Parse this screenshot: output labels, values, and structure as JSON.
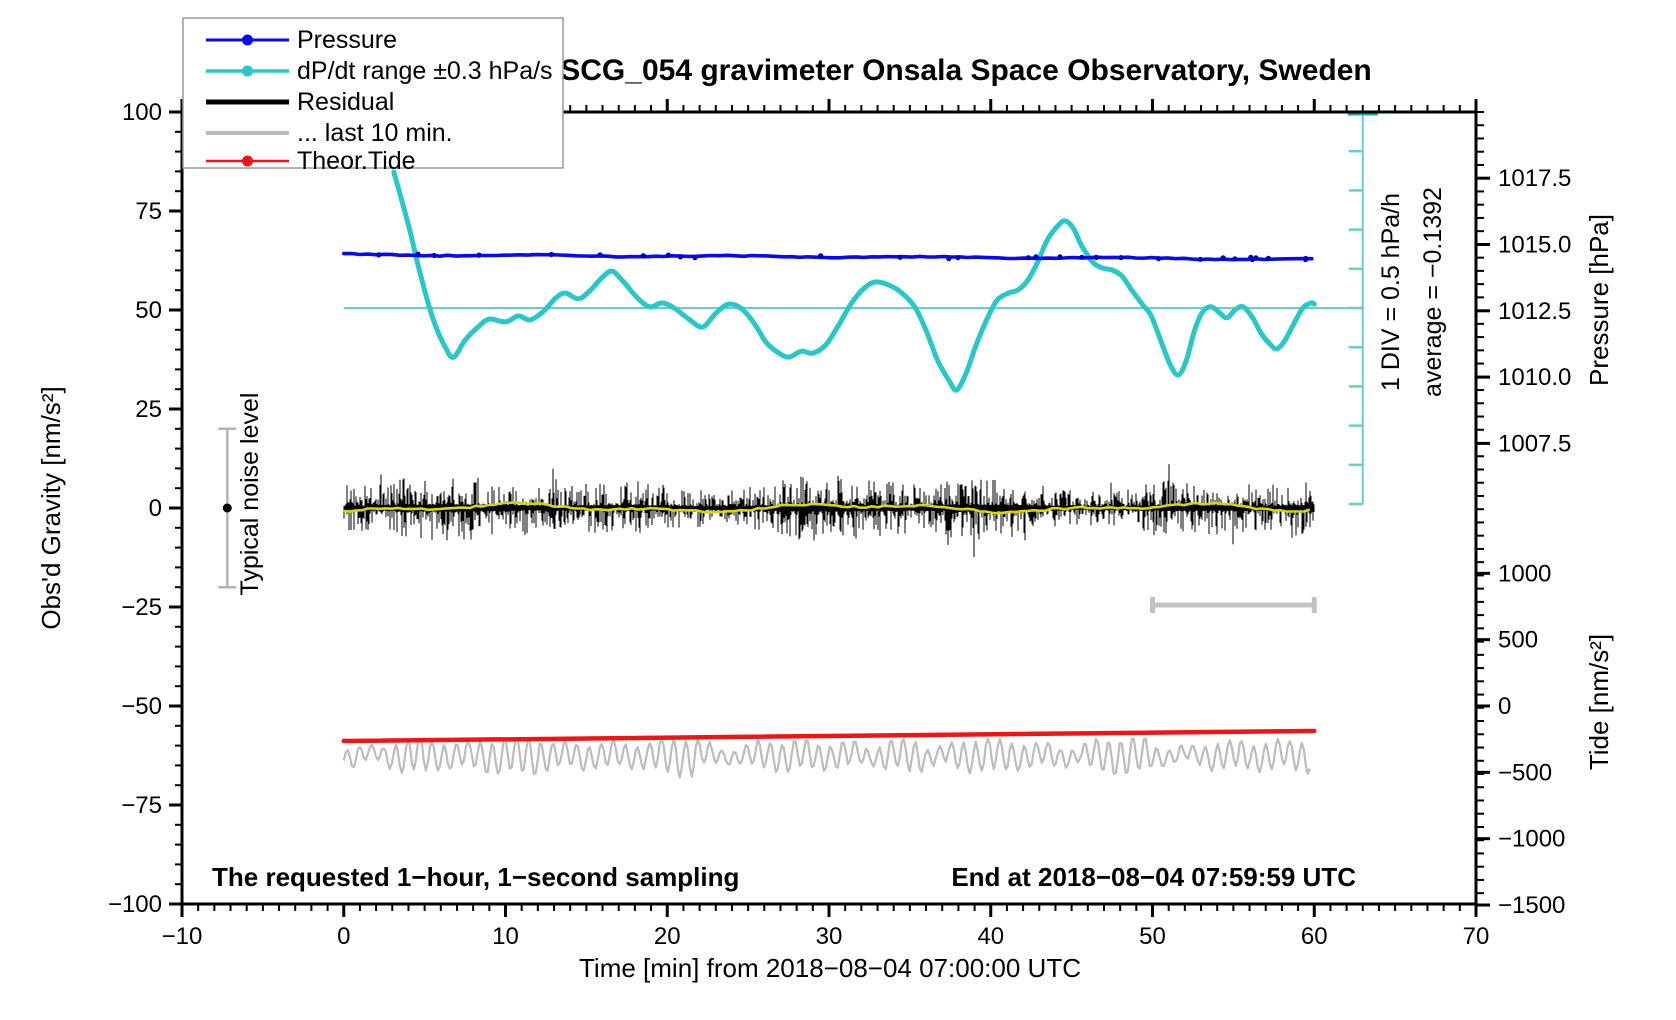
{
  "title": "SCG_054 gravimeter Onsala Space Observatory, Sweden",
  "annotations": {
    "bottom_left": "The requested 1−hour, 1−second sampling",
    "bottom_right": "End at 2018−08−04 07:59:59 UTC",
    "div_scale": "1 DIV = 0.5 hPa/h",
    "average": "average = −0.1392",
    "noise_level": "Typical noise level"
  },
  "axes": {
    "x": {
      "label": "Time [min] from 2018−08−04 07:00:00 UTC",
      "min": -10,
      "max": 70,
      "major_step": 10,
      "minor_step": 1,
      "major_ticks": [
        -10,
        0,
        10,
        20,
        30,
        40,
        50,
        60,
        70
      ],
      "major_labels": [
        "−10",
        "0",
        "10",
        "20",
        "30",
        "40",
        "50",
        "60",
        "70"
      ]
    },
    "y_left": {
      "label": "Obs'd Gravity [nm/s²]",
      "min": -100,
      "max": 100,
      "major_step": 25,
      "minor_step": 5,
      "major_ticks": [
        100,
        75,
        50,
        25,
        0,
        -25,
        -50,
        -75,
        -100
      ],
      "major_labels": [
        "100",
        "75",
        "50",
        "25",
        "0",
        "−25",
        "−50",
        "−75",
        "−100"
      ]
    },
    "y_right_pressure": {
      "label": "Pressure [hPa]",
      "major_ticks": [
        1017.5,
        1015.0,
        1012.5,
        1010.0,
        1007.5
      ],
      "major_labels": [
        "1017.5",
        "1015.0",
        "1012.5",
        "1010.0",
        "1007.5"
      ],
      "minor_step_hpa": 0.5
    },
    "y_right_tide": {
      "label": "Tide [nm/s²]",
      "major_ticks": [
        1000,
        500,
        0,
        -500,
        -1000,
        -1500
      ],
      "major_labels": [
        "1000",
        "500",
        "0",
        "−500",
        "−1000",
        "−1500"
      ],
      "minor_step": 100
    }
  },
  "legend": {
    "items": [
      {
        "label": "Pressure",
        "color": "#0a0af0",
        "lw": 3,
        "dot": true
      },
      {
        "label": "dP/dt range ±0.3 hPa/s",
        "color": "#28c8c8",
        "lw": 3.5,
        "dot": true
      },
      {
        "label": "Residual",
        "color": "#000000",
        "lw": 5,
        "dot": false
      },
      {
        "label": "... last 10 min.",
        "color": "#bcbcbc",
        "lw": 4,
        "dot": false
      },
      {
        "label": "Theor.Tide",
        "color": "#ef1515",
        "lw": 2.5,
        "dot": true
      }
    ]
  },
  "colors": {
    "pressure": "#0a0af0",
    "pressure_marker": "#0000c8",
    "dpdt": "#28c8c8",
    "dpdt_ref": "#63cfcf",
    "dpdt_cap": "#1fa6a6",
    "residual": "#000000",
    "residual_smooth": "#d8d800",
    "last10": "#bcbcbc",
    "last10_bar": "#c3c3c3",
    "tide": "#ef1515",
    "noise_marker": "#b3b3b3",
    "frame": "#000000"
  },
  "chart_data": {
    "type": "line",
    "title": "SCG_054 gravimeter Onsala Space Observatory, Sweden",
    "xlabel": "Time [min] from 2018−08−04 07:00:00 UTC",
    "x_range_min": [
      -10,
      70
    ],
    "left_axis_range": [
      -100,
      100
    ],
    "series": [
      {
        "name": "Pressure",
        "axis": "pressure_hPa",
        "points": [
          [
            0,
            1014.62
          ],
          [
            60,
            1014.45
          ]
        ],
        "trend_hpa_per_h": -0.1392,
        "style": "nearly flat thick line with sparse small dot markers"
      },
      {
        "name": "dP/dt range ±0.3 hPa/s",
        "axis": "left_gravity_scale",
        "points": [
          [
            3.1,
            84.8
          ],
          [
            4.0,
            71.5
          ],
          [
            4.7,
            59.6
          ],
          [
            5.5,
            48.0
          ],
          [
            6.3,
            40.4
          ],
          [
            6.8,
            38.1
          ],
          [
            7.5,
            42.4
          ],
          [
            8.3,
            45.7
          ],
          [
            9.0,
            47.7
          ],
          [
            10.0,
            47.0
          ],
          [
            10.8,
            48.5
          ],
          [
            11.5,
            47.5
          ],
          [
            12.3,
            49.5
          ],
          [
            13.1,
            53.0
          ],
          [
            13.7,
            54.3
          ],
          [
            14.5,
            52.8
          ],
          [
            15.2,
            54.8
          ],
          [
            16.0,
            58.3
          ],
          [
            16.6,
            59.8
          ],
          [
            17.3,
            57.1
          ],
          [
            18.1,
            53.3
          ],
          [
            18.9,
            50.8
          ],
          [
            19.7,
            51.8
          ],
          [
            20.5,
            50.3
          ],
          [
            21.4,
            47.5
          ],
          [
            22.2,
            45.7
          ],
          [
            23.0,
            49.2
          ],
          [
            23.8,
            51.5
          ],
          [
            24.6,
            50.3
          ],
          [
            25.4,
            46.5
          ],
          [
            26.1,
            41.9
          ],
          [
            26.8,
            39.4
          ],
          [
            27.5,
            38.1
          ],
          [
            28.3,
            39.6
          ],
          [
            29.0,
            39.1
          ],
          [
            29.8,
            41.2
          ],
          [
            30.6,
            46.2
          ],
          [
            31.4,
            51.8
          ],
          [
            32.2,
            55.6
          ],
          [
            32.9,
            57.1
          ],
          [
            33.7,
            56.3
          ],
          [
            34.5,
            54.3
          ],
          [
            35.3,
            50.8
          ],
          [
            36.0,
            44.9
          ],
          [
            36.7,
            37.4
          ],
          [
            37.4,
            32.3
          ],
          [
            37.9,
            29.8
          ],
          [
            38.5,
            34.3
          ],
          [
            39.1,
            41.2
          ],
          [
            39.8,
            48.0
          ],
          [
            40.4,
            52.5
          ],
          [
            41.1,
            54.3
          ],
          [
            41.7,
            55.1
          ],
          [
            42.3,
            57.6
          ],
          [
            42.9,
            62.1
          ],
          [
            43.5,
            67.7
          ],
          [
            44.2,
            71.5
          ],
          [
            44.6,
            72.5
          ],
          [
            45.1,
            70.7
          ],
          [
            45.6,
            66.4
          ],
          [
            46.3,
            62.1
          ],
          [
            46.9,
            60.6
          ],
          [
            47.5,
            60.1
          ],
          [
            48.1,
            58.6
          ],
          [
            48.7,
            55.1
          ],
          [
            49.4,
            51.3
          ],
          [
            49.9,
            48.7
          ],
          [
            50.5,
            42.4
          ],
          [
            51.1,
            36.1
          ],
          [
            51.6,
            33.6
          ],
          [
            52.1,
            37.4
          ],
          [
            52.6,
            44.9
          ],
          [
            53.1,
            49.5
          ],
          [
            53.6,
            50.8
          ],
          [
            54.1,
            49.5
          ],
          [
            54.6,
            48.0
          ],
          [
            55.1,
            50.0
          ],
          [
            55.6,
            50.8
          ],
          [
            56.2,
            48.0
          ],
          [
            56.7,
            44.2
          ],
          [
            57.3,
            41.2
          ],
          [
            57.7,
            40.2
          ],
          [
            58.2,
            42.4
          ],
          [
            58.8,
            47.0
          ],
          [
            59.3,
            50.5
          ],
          [
            59.8,
            51.8
          ],
          [
            60.0,
            51.5
          ]
        ]
      },
      {
        "name": "Residual",
        "axis": "left_gravity_scale",
        "description": "dense high-frequency noise band centred at 0",
        "mean": 0,
        "typical_amplitude": 8,
        "max_spike": 25,
        "t_range": [
          0,
          60
        ]
      },
      {
        "name": "Residual smoothed",
        "axis": "left_gravity_scale",
        "mean": 0,
        "amplitude": 1.2,
        "t_range": [
          0,
          60
        ]
      },
      {
        "name": "... last 10 min.",
        "axis": "left_gravity_scale",
        "description": "spiky oscillation below Theor.Tide",
        "mean": -62.5,
        "amplitude": 4.5,
        "period_min": 0.75,
        "t_range": [
          0,
          60
        ]
      },
      {
        "name": "Theor.Tide",
        "axis": "tide_nm_s2",
        "points": [
          [
            0,
            -264
          ],
          [
            30,
            -222
          ],
          [
            60,
            -188
          ]
        ]
      }
    ],
    "annotation_graphics": {
      "dpdt_reference_line_left_units": 50.5,
      "div_scale_bar": {
        "t": 63,
        "v_top": 100,
        "v_bottom": 1,
        "divisions": 10
      },
      "last10_interval_bar": {
        "t_from": 50,
        "t_to": 60,
        "v": -24.5
      },
      "noise_marker": {
        "t": -7.2,
        "v": 0,
        "error": 20
      }
    }
  }
}
